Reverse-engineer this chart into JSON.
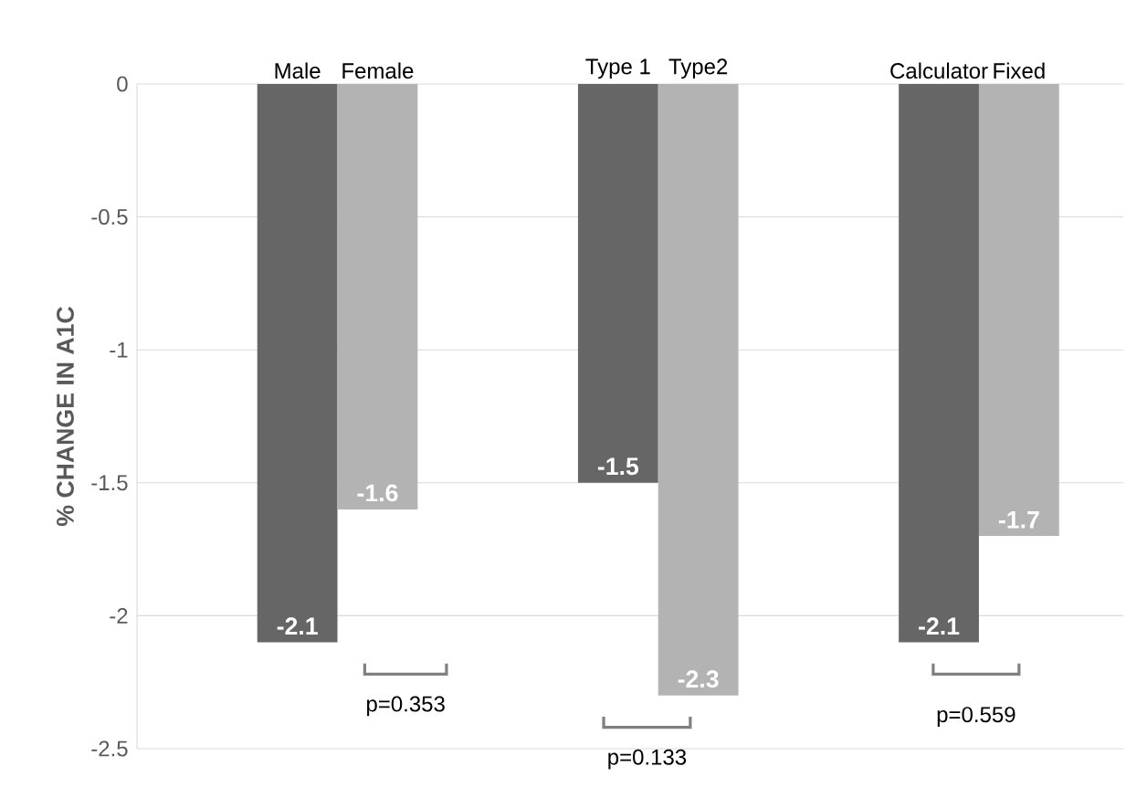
{
  "chart_data": {
    "type": "bar",
    "ylabel": "% CHANGE IN A1C",
    "categories": [
      "Male",
      "Female",
      "Type 1",
      "Type2",
      "Calculator",
      "Fixed"
    ],
    "values": [
      -2.1,
      -1.6,
      -1.5,
      -2.3,
      -2.1,
      -1.7
    ],
    "colors": [
      "#666666",
      "#b3b3b3",
      "#666666",
      "#b3b3b3",
      "#666666",
      "#b3b3b3"
    ],
    "ylim": [
      -2.5,
      0
    ],
    "yticks": [
      -2.5,
      -2,
      -1.5,
      -1,
      -0.5,
      0
    ],
    "grid": "y",
    "data_labels": true,
    "annotations": [
      "p=0.353",
      "p=0.133",
      "p=0.559"
    ]
  }
}
